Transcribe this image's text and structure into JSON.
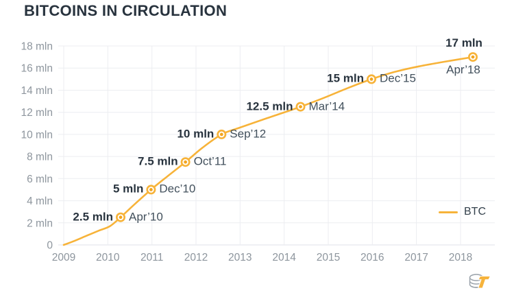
{
  "header": {
    "title": "BITCOINS IN CIRCULATION"
  },
  "legend": {
    "label": "BTC"
  },
  "colors": {
    "line": "#F7B339",
    "marker_ring": "#F7B339",
    "marker_center": "#F2A51F",
    "title_text": "#28333E",
    "annotation_value_text": "#28333E",
    "annotation_date_text": "#42505C",
    "axis_label_text": "#8D959D",
    "gridline": "#ECEDF1",
    "baseline": "#DFE2E8",
    "background": "#FFFFFF"
  },
  "chart_data": {
    "type": "line",
    "title": "BITCOINS IN CIRCULATION",
    "unit": "mln",
    "xlabel": "",
    "ylabel": "",
    "grid": true,
    "legend_position": "right",
    "xlim": [
      2009,
      2018.8
    ],
    "ylim": [
      0,
      18
    ],
    "x_ticks": [
      "2009",
      "2010",
      "2011",
      "2012",
      "2013",
      "2014",
      "2015",
      "2016",
      "2017",
      "2018"
    ],
    "x_tick_values": [
      2009,
      2010,
      2011,
      2012,
      2013,
      2014,
      2015,
      2016,
      2017,
      2018
    ],
    "y_ticks": [
      "0",
      "2 mln",
      "4 mln",
      "6 mln",
      "8 mln",
      "10 mln",
      "12 mln",
      "14 mln",
      "16 mln",
      "18 mln"
    ],
    "y_tick_values": [
      0,
      2,
      4,
      6,
      8,
      10,
      12,
      14,
      16,
      18
    ],
    "series": [
      {
        "name": "BTC",
        "points": [
          [
            2009.0,
            0
          ],
          [
            2009.2,
            0.3
          ],
          [
            2009.5,
            0.8
          ],
          [
            2009.8,
            1.3
          ],
          [
            2010.05,
            1.7
          ],
          [
            2010.29,
            2.5
          ],
          [
            2010.6,
            3.65
          ],
          [
            2010.98,
            5.0
          ],
          [
            2011.35,
            6.2
          ],
          [
            2011.76,
            7.5
          ],
          [
            2012.15,
            8.8
          ],
          [
            2012.58,
            10.0
          ],
          [
            2012.95,
            10.55
          ],
          [
            2013.6,
            11.45
          ],
          [
            2014.37,
            12.5
          ],
          [
            2014.9,
            13.3
          ],
          [
            2015.45,
            14.2
          ],
          [
            2015.98,
            15.0
          ],
          [
            2016.5,
            15.65
          ],
          [
            2017.05,
            16.15
          ],
          [
            2017.6,
            16.55
          ],
          [
            2018.28,
            17.0
          ]
        ]
      }
    ],
    "annotations": [
      {
        "value_label": "2.5 mln",
        "date_label": "Apr’10",
        "x": 2010.29,
        "y": 2.5,
        "placement": "side"
      },
      {
        "value_label": "5 mln",
        "date_label": "Dec’10",
        "x": 2010.98,
        "y": 5,
        "placement": "side"
      },
      {
        "value_label": "7.5 mln",
        "date_label": "Oct’11",
        "x": 2011.76,
        "y": 7.5,
        "placement": "side"
      },
      {
        "value_label": "10 mln",
        "date_label": "Sep’12",
        "x": 2012.58,
        "y": 10,
        "placement": "side"
      },
      {
        "value_label": "12.5 mln",
        "date_label": "Mar’14",
        "x": 2014.37,
        "y": 12.5,
        "placement": "side"
      },
      {
        "value_label": "15 mln",
        "date_label": "Dec’15",
        "x": 2015.98,
        "y": 15,
        "placement": "side"
      },
      {
        "value_label": "17 mln",
        "date_label": "Apr’18",
        "x": 2018.28,
        "y": 17,
        "placement": "stacked"
      }
    ]
  },
  "logo": {
    "name": "coins-logo"
  }
}
